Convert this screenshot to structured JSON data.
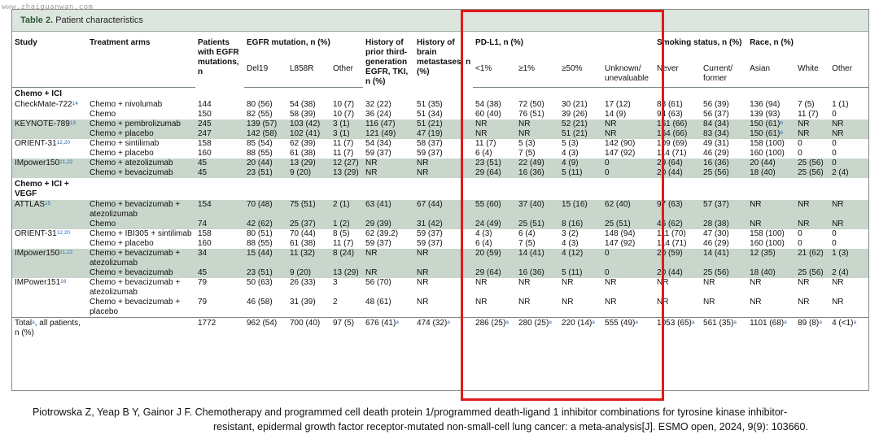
{
  "watermark": "www.zhaiguanwan.com",
  "table": {
    "title_bold": "Table 2.",
    "title_rest": "Patient characteristics"
  },
  "header": {
    "study": "Study",
    "arms": "Treatment arms",
    "patients": "Patients with EGFR mutations, n",
    "egfr_group": "EGFR mutation, n (%)",
    "prior": "History of prior third-generation EGFR, TKI, n (%)",
    "brain": "History of brain metastases, n (%)",
    "pdl1_group": "PD-L1, n (%)",
    "smoking_group": "Smoking status, n (%)",
    "race_group": "Race, n (%)",
    "sub": {
      "del19": "Del19",
      "l858r": "L858R",
      "other": "Other",
      "lt1": "<1%",
      "ge1": "≥1%",
      "ge50": "≥50%",
      "unknown": "Unknown/ unevaluable",
      "never": "Never",
      "current": "Current/ former",
      "asian": "Asian",
      "white": "White",
      "race_other": "Other"
    }
  },
  "sections": [
    {
      "label": "Chemo + ICI",
      "groups": [
        {
          "study": "CheckMate-722",
          "sup": "14",
          "shade": "w",
          "rows": [
            [
              "Chemo + nivolumab",
              "144",
              "80 (56)",
              "54 (38)",
              "10 (7)",
              "32 (22)",
              "51 (35)",
              "54 (38)",
              "72 (50)",
              "30 (21)",
              "17 (12)",
              "88 (61)",
              "56 (39)",
              "136 (94)",
              "7 (5)",
              "1 (1)"
            ],
            [
              "Chemo",
              "150",
              "82 (55)",
              "58 (39)",
              "10 (7)",
              "36 (24)",
              "51 (34)",
              "60 (40)",
              "76 (51)",
              "39 (26)",
              "14 (9)",
              "94 (63)",
              "56 (37)",
              "139 (93)",
              "11 (7)",
              "0"
            ]
          ]
        },
        {
          "study": "KEYNOTE-789",
          "sup": "13",
          "shade": "g",
          "rows": [
            [
              "Chemo + pembrolizumab",
              "245",
              "139 (57)",
              "103 (42)",
              "3 (1)",
              "116 (47)",
              "51 (21)",
              "NR",
              "NR",
              "52 (21)",
              "NR",
              "161 (66)",
              "84 (34)",
              "150 (61)b",
              "NR",
              "NR"
            ],
            [
              "Chemo + placebo",
              "247",
              "142 (58)",
              "102 (41)",
              "3 (1)",
              "121 (49)",
              "47 (19)",
              "NR",
              "NR",
              "51 (21)",
              "NR",
              "164 (66)",
              "83 (34)",
              "150 (61)b",
              "NR",
              "NR"
            ]
          ]
        },
        {
          "study": "ORIENT-31",
          "sup": "12,20",
          "shade": "w",
          "rows": [
            [
              "Chemo + sintilimab",
              "158",
              "85 (54)",
              "62 (39)",
              "11 (7)",
              "54 (34)",
              "58 (37)",
              "11 (7)",
              "5 (3)",
              "5 (3)",
              "142 (90)",
              "109 (69)",
              "49 (31)",
              "158 (100)",
              "0",
              "0"
            ],
            [
              "Chemo + placebo",
              "160",
              "88 (55)",
              "61 (38)",
              "11 (7)",
              "59 (37)",
              "59 (37)",
              "6 (4)",
              "7 (5)",
              "4 (3)",
              "147 (92)",
              "114 (71)",
              "46 (29)",
              "160 (100)",
              "0",
              "0"
            ]
          ]
        },
        {
          "study": "IMpower150",
          "sup": "21,22",
          "shade": "g",
          "rows": [
            [
              "Chemo + atezolizumab",
              "45",
              "20 (44)",
              "13 (29)",
              "12 (27)",
              "NR",
              "NR",
              "23 (51)",
              "22 (49)",
              "4 (9)",
              "0",
              "29 (64)",
              "16 (36)",
              "20 (44)",
              "25 (56)",
              "0"
            ],
            [
              "Chemo + bevacizumab",
              "45",
              "23 (51)",
              "9 (20)",
              "13 (29)",
              "NR",
              "NR",
              "29 (64)",
              "16 (36)",
              "5 (11)",
              "0",
              "20 (44)",
              "25 (56)",
              "18 (40)",
              "25 (56)",
              "2 (4)"
            ]
          ]
        }
      ]
    },
    {
      "label": "Chemo + ICI + VEGF",
      "groups": [
        {
          "study": "ATTLAS",
          "sup": "15",
          "shade": "g",
          "rows": [
            [
              "Chemo + bevacizumab + atezolizumab",
              "154",
              "70 (48)",
              "75 (51)",
              "2 (1)",
              "63 (41)",
              "67 (44)",
              "55 (60)",
              "37 (40)",
              "15 (16)",
              "62 (40)",
              "97 (63)",
              "57 (37)",
              "NR",
              "NR",
              "NR"
            ],
            [
              "Chemo",
              "74",
              "42 (62)",
              "25 (37)",
              "1 (2)",
              "29 (39)",
              "31 (42)",
              "24 (49)",
              "25 (51)",
              "8 (16)",
              "25 (51)",
              "46 (62)",
              "28 (38)",
              "NR",
              "NR",
              "NR"
            ]
          ]
        },
        {
          "study": "ORIENT-31",
          "sup": "12,20",
          "shade": "w",
          "rows": [
            [
              "Chemo + IBI305 + sintilimab",
              "158",
              "80 (51)",
              "70 (44)",
              "8 (5)",
              "62 (39.2)",
              "59 (37)",
              "4 (3)",
              "6 (4)",
              "3 (2)",
              "148 (94)",
              "111 (70)",
              "47 (30)",
              "158 (100)",
              "0",
              "0"
            ],
            [
              "Chemo + placebo",
              "160",
              "88 (55)",
              "61 (38)",
              "11 (7)",
              "59 (37)",
              "59 (37)",
              "6 (4)",
              "7 (5)",
              "4 (3)",
              "147 (92)",
              "114 (71)",
              "46 (29)",
              "160 (100)",
              "0",
              "0"
            ]
          ]
        },
        {
          "study": "IMpower150",
          "sup": "21,22",
          "shade": "g",
          "rows": [
            [
              "Chemo + bevacizumab + atezolizumab",
              "34",
              "15 (44)",
              "11 (32)",
              "8 (24)",
              "NR",
              "NR",
              "20 (59)",
              "14 (41)",
              "4 (12)",
              "0",
              "20 (59)",
              "14 (41)",
              "12 (35)",
              "21 (62)",
              "1 (3)"
            ],
            [
              "Chemo + bevacizumab",
              "45",
              "23 (51)",
              "9 (20)",
              "13 (29)",
              "NR",
              "NR",
              "29 (64)",
              "16 (36)",
              "5 (11)",
              "0",
              "20 (44)",
              "25 (56)",
              "18 (40)",
              "25 (56)",
              "2 (4)"
            ]
          ]
        },
        {
          "study": "IMPower151",
          "sup": "16",
          "shade": "w",
          "rows": [
            [
              "Chemo + bevacizumab + atezolizumab",
              "79",
              "50 (63)",
              "26 (33)",
              "3",
              "56 (70)",
              "NR",
              "NR",
              "NR",
              "NR",
              "NR",
              "NR",
              "NR",
              "NR",
              "NR",
              "NR"
            ],
            [
              "Chemo + bevacizumab + placebo",
              "79",
              "46 (58)",
              "31 (39)",
              "2",
              "48 (61)",
              "NR",
              "NR",
              "NR",
              "NR",
              "NR",
              "NR",
              "NR",
              "NR",
              "NR",
              "NR"
            ]
          ]
        }
      ]
    }
  ],
  "total": {
    "study": "Total",
    "study_sup": "a",
    "study_rest": ", all patients, n (%)",
    "cells": [
      {
        "v": "",
        "s": ""
      },
      {
        "v": "1772",
        "s": ""
      },
      {
        "v": "962 (54)",
        "s": ""
      },
      {
        "v": "700 (40)",
        "s": ""
      },
      {
        "v": "97 (5)",
        "s": ""
      },
      {
        "v": "676 (41)",
        "s": "a"
      },
      {
        "v": "474 (32)",
        "s": "a"
      },
      {
        "v": "286 (25)",
        "s": "a"
      },
      {
        "v": "280 (25)",
        "s": "a"
      },
      {
        "v": "220 (14)",
        "s": "a"
      },
      {
        "v": "555 (49)",
        "s": "a"
      },
      {
        "v": "1053 (65)",
        "s": "a"
      },
      {
        "v": "561 (35)",
        "s": "a"
      },
      {
        "v": "1101 (68)",
        "s": "a"
      },
      {
        "v": "89 (8)",
        "s": "a"
      },
      {
        "v": "4 (<1)",
        "s": "a"
      }
    ]
  },
  "citation": {
    "line1": "Piotrowska Z, Yeap B Y, Gainor J F. Chemotherapy and programmed cell death protein 1/programmed death-ligand 1 inhibitor combinations for tyrosine kinase inhibitor-",
    "line2": "resistant, epidermal growth factor receptor-mutated non-small-cell lung cancer: a meta-analysis[J]. ESMO open, 2024, 9(9): 103660."
  },
  "highlight_color": "#e01b1b",
  "row_shade_color": "#c9d6cb"
}
